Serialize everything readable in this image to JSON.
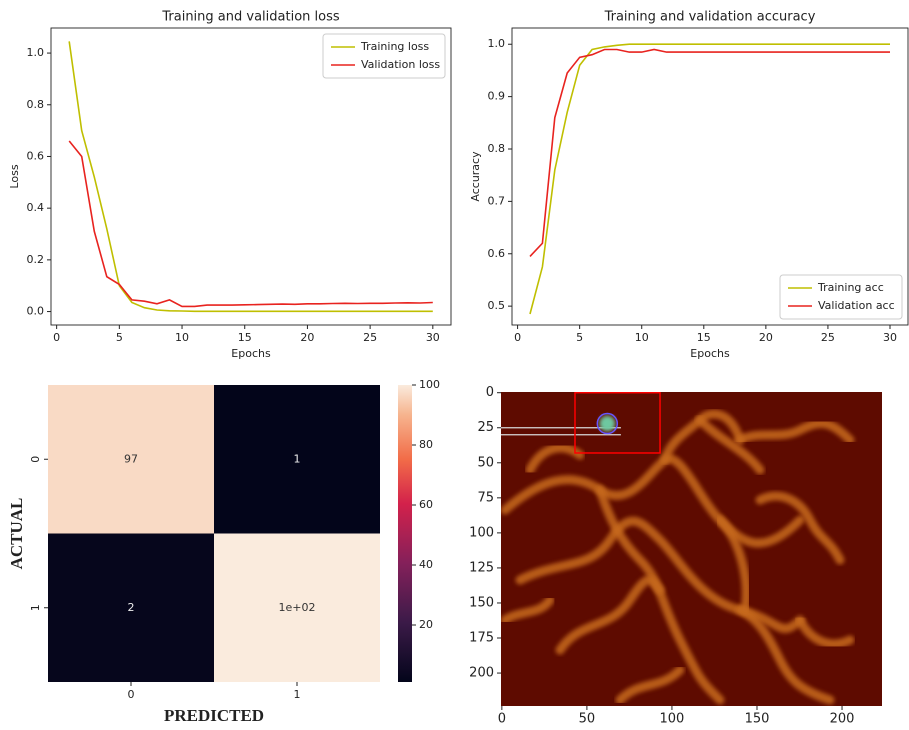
{
  "chart_data": [
    {
      "type": "line",
      "title": "Training and validation loss",
      "xlabel": "Epochs",
      "ylabel": "Loss",
      "x": [
        1,
        2,
        3,
        4,
        5,
        6,
        7,
        8,
        9,
        10,
        11,
        12,
        13,
        14,
        15,
        16,
        17,
        18,
        19,
        20,
        21,
        22,
        23,
        24,
        25,
        26,
        27,
        28,
        29,
        30
      ],
      "series": [
        {
          "name": "Training loss",
          "color": "#bfbf00",
          "values": [
            1.045,
            0.7,
            0.52,
            0.32,
            0.1,
            0.035,
            0.015,
            0.006,
            0.003,
            0.002,
            0.001,
            0.001,
            0.001,
            0.001,
            0.001,
            0.001,
            0.001,
            0.001,
            0.001,
            0.001,
            0.001,
            0.001,
            0.001,
            0.001,
            0.001,
            0.001,
            0.001,
            0.001,
            0.001,
            0.001
          ]
        },
        {
          "name": "Validation loss",
          "color": "#e8231f",
          "values": [
            0.66,
            0.6,
            0.31,
            0.135,
            0.105,
            0.045,
            0.04,
            0.03,
            0.045,
            0.02,
            0.02,
            0.025,
            0.025,
            0.025,
            0.026,
            0.027,
            0.028,
            0.029,
            0.028,
            0.03,
            0.03,
            0.031,
            0.032,
            0.031,
            0.032,
            0.032,
            0.033,
            0.034,
            0.033,
            0.035
          ]
        }
      ],
      "xlim": [
        -0.45,
        31.45
      ],
      "xticks": [
        0,
        5,
        10,
        15,
        20,
        25,
        30
      ],
      "ylim": [
        -0.052,
        1.097
      ],
      "yticks": [
        {
          "value": 0,
          "label": "0.0"
        },
        0.2,
        0.4,
        0.6,
        0.8,
        {
          "value": 1,
          "label": "1.0"
        }
      ],
      "legend": "upper right"
    },
    {
      "type": "line",
      "title": "Training and validation accuracy",
      "xlabel": "Epochs",
      "ylabel": "Accuracy",
      "x": [
        1,
        2,
        3,
        4,
        5,
        6,
        7,
        8,
        9,
        10,
        11,
        12,
        13,
        14,
        15,
        16,
        17,
        18,
        19,
        20,
        21,
        22,
        23,
        24,
        25,
        26,
        27,
        28,
        29,
        30
      ],
      "series": [
        {
          "name": "Training acc",
          "color": "#bfbf00",
          "values": [
            0.485,
            0.575,
            0.76,
            0.87,
            0.96,
            0.99,
            0.995,
            0.998,
            1.0,
            1.0,
            1.0,
            1.0,
            1.0,
            1.0,
            1.0,
            1.0,
            1.0,
            1.0,
            1.0,
            1.0,
            1.0,
            1.0,
            1.0,
            1.0,
            1.0,
            1.0,
            1.0,
            1.0,
            1.0,
            1.0
          ]
        },
        {
          "name": "Validation acc",
          "color": "#e8231f",
          "values": [
            0.595,
            0.62,
            0.86,
            0.945,
            0.975,
            0.98,
            0.99,
            0.99,
            0.985,
            0.985,
            0.99,
            0.985,
            0.985,
            0.985,
            0.985,
            0.985,
            0.985,
            0.985,
            0.985,
            0.985,
            0.985,
            0.985,
            0.985,
            0.985,
            0.985,
            0.985,
            0.985,
            0.985,
            0.985,
            0.985
          ]
        }
      ],
      "xlim": [
        -0.45,
        31.45
      ],
      "xticks": [
        0,
        5,
        10,
        15,
        20,
        25,
        30
      ],
      "ylim": [
        0.464,
        1.031
      ],
      "yticks": [
        0.5,
        0.6,
        0.7,
        0.8,
        0.9,
        {
          "value": 1,
          "label": "1.0"
        }
      ],
      "legend": "lower right"
    },
    {
      "type": "heatmap",
      "xlabel": "PREDICTED",
      "ylabel": "ACTUAL",
      "x_categories": [
        "0",
        "1"
      ],
      "y_categories": [
        "0",
        "1"
      ],
      "values": [
        [
          97,
          1
        ],
        [
          2,
          100
        ]
      ],
      "value_labels": [
        [
          "97",
          "1"
        ],
        [
          "2",
          "1e+02"
        ]
      ],
      "colormap": "rocket",
      "clim": [
        1,
        100
      ],
      "colorbar_ticks": [
        20,
        40,
        60,
        80,
        100
      ]
    },
    {
      "type": "image",
      "xlim": [
        -0.5,
        223.5
      ],
      "ylim": [
        223.5,
        -0.5
      ],
      "xticks": [
        0,
        50,
        100,
        150,
        200
      ],
      "yticks": [
        0,
        25,
        50,
        75,
        100,
        125,
        150,
        175,
        200
      ],
      "box_x": [
        43,
        93
      ],
      "box_y": [
        0,
        43
      ],
      "box_color": "#ff0000"
    }
  ]
}
